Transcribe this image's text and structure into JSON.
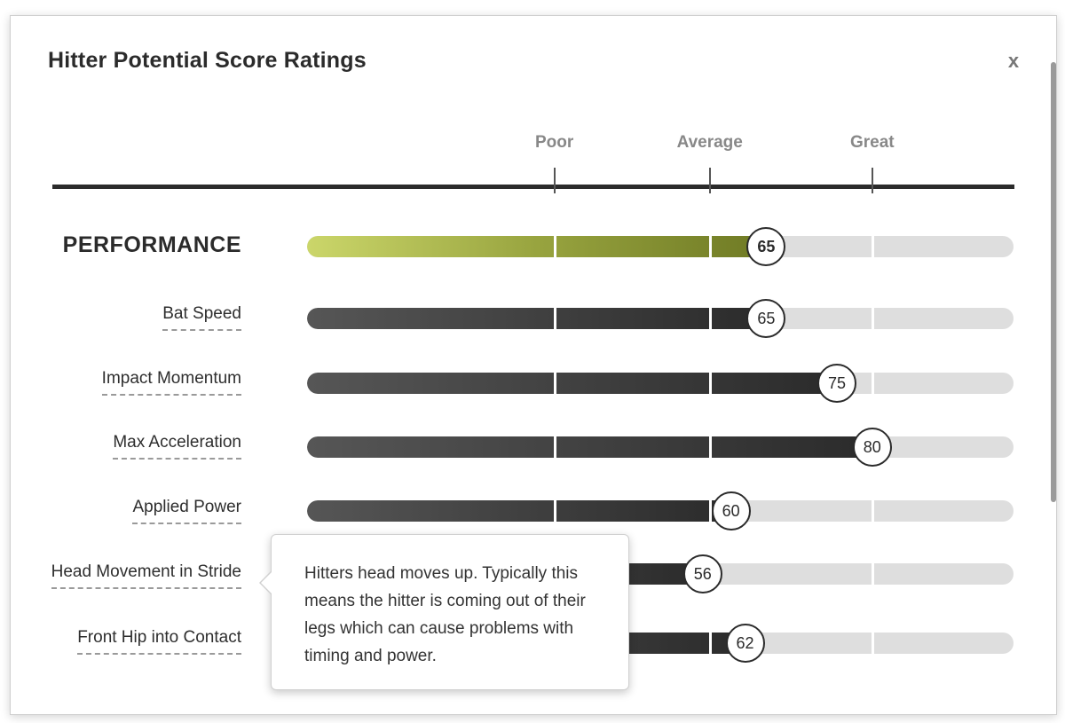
{
  "header": {
    "title": "Hitter Potential Score Ratings",
    "close_label": "x"
  },
  "scale": {
    "labels": [
      "Poor",
      "Average",
      "Great"
    ],
    "positions": [
      35,
      57,
      80
    ]
  },
  "rows": [
    {
      "label": "PERFORMANCE",
      "value": 65,
      "main": true
    },
    {
      "label": "Bat Speed",
      "value": 65
    },
    {
      "label": "Impact Momentum",
      "value": 75
    },
    {
      "label": "Max Acceleration",
      "value": 80
    },
    {
      "label": "Applied Power",
      "value": 60
    },
    {
      "label": "Head Movement in Stride",
      "value": 56
    },
    {
      "label": "Front Hip into Contact",
      "value": 62
    }
  ],
  "tooltip": {
    "text": "Hitters head moves up. Typically this means the hitter is coming out of their legs which can cause problems with timing and power."
  },
  "colors": {
    "performance_fill": "#98a43f",
    "metric_fill": "#2b2b2b",
    "track": "#dedede"
  }
}
